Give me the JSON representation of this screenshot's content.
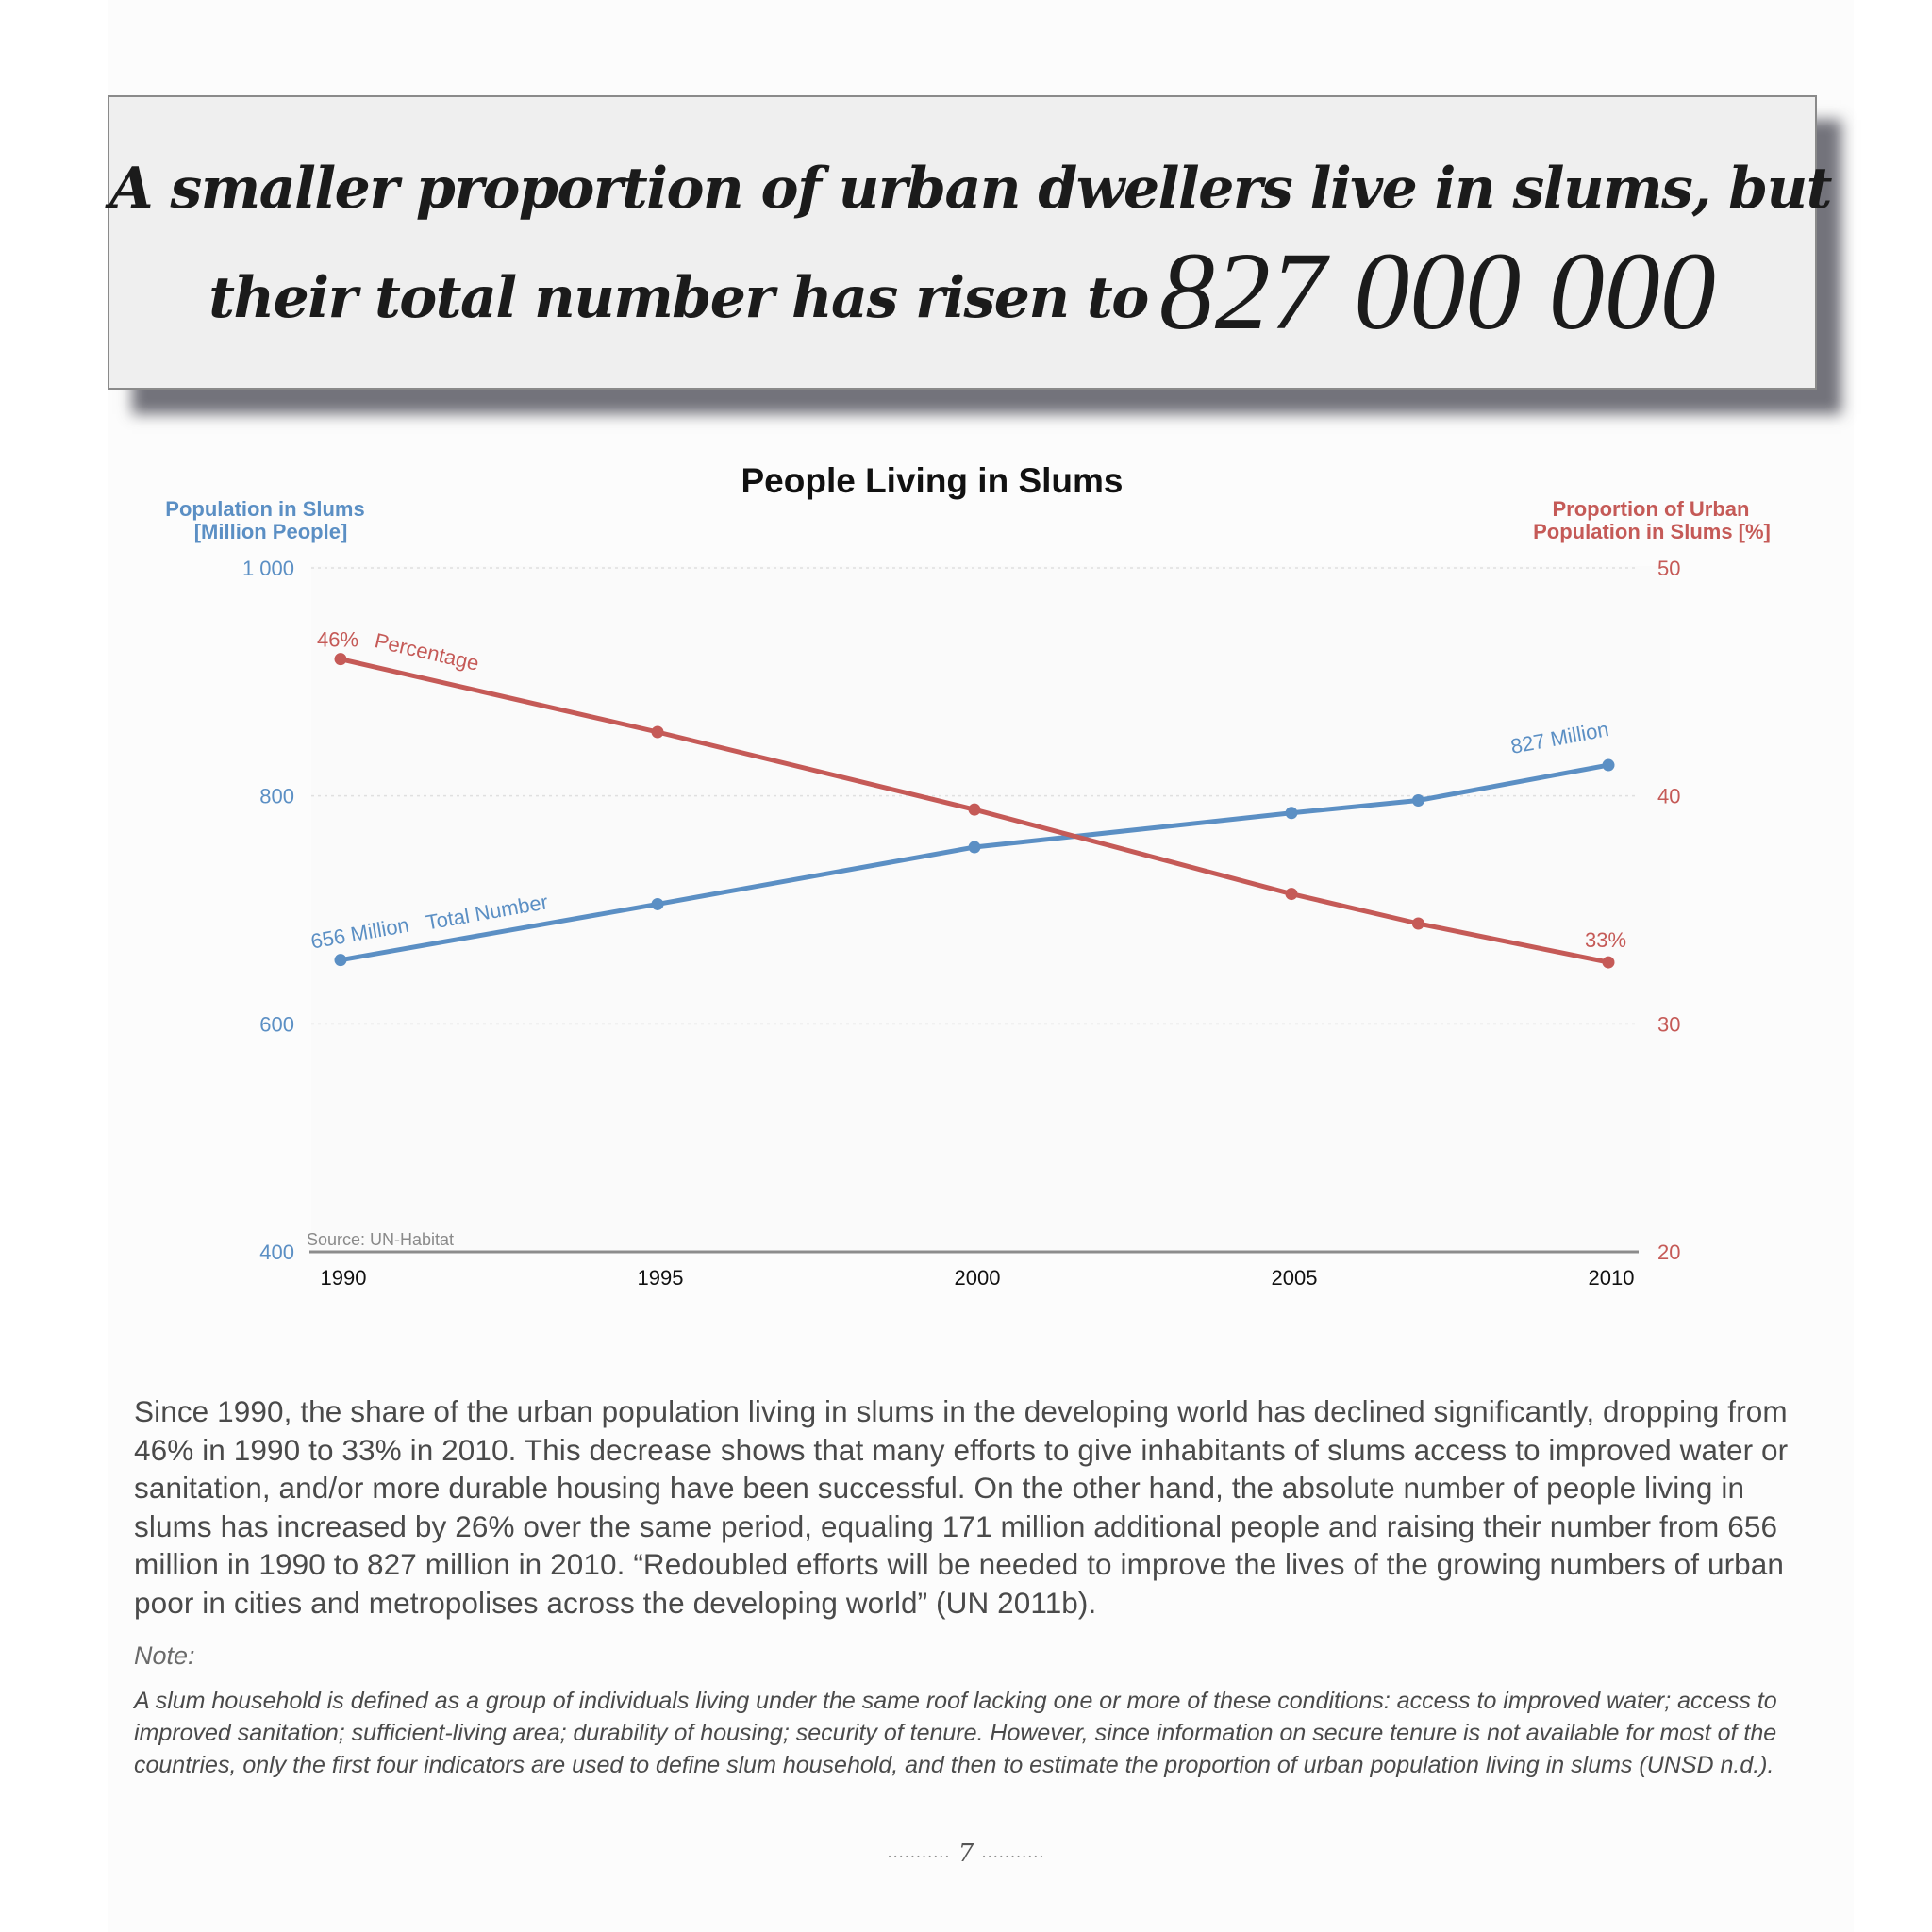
{
  "headline": {
    "line1": "A smaller proportion of urban dwellers live in slums, but",
    "line2": "their total number has risen to",
    "big_number": "827 000 000"
  },
  "chart_data": {
    "type": "line",
    "title": "People Living in Slums",
    "x": [
      1990,
      1995,
      2000,
      2005,
      2007,
      2010
    ],
    "x_ticks": [
      "1990",
      "1995",
      "2000",
      "2005",
      "2010"
    ],
    "y_left": {
      "label_line1": "Population in Slums",
      "label_line2": "[Million People]",
      "ticks": [
        "1 000",
        "800",
        "600",
        "400"
      ],
      "range": [
        400,
        1000
      ]
    },
    "y_right": {
      "label_line1": "Proportion of Urban",
      "label_line2": "Population in Slums [%]",
      "ticks": [
        "50",
        "40",
        "30",
        "20"
      ],
      "range": [
        20,
        50
      ]
    },
    "series": [
      {
        "name": "Total Number",
        "axis": "left",
        "color": "#5b8fc4",
        "values": [
          656,
          705,
          755,
          785,
          796,
          827
        ],
        "start_label": "656 Million",
        "end_label": "827 Million"
      },
      {
        "name": "Percentage",
        "axis": "right",
        "color": "#c55a57",
        "values": [
          46,
          42.8,
          39.4,
          35.7,
          34.4,
          32.7
        ],
        "start_label": "46%",
        "end_label": "33%"
      }
    ],
    "source": "Source: UN-Habitat",
    "grid": true
  },
  "body": {
    "paragraph": "Since 1990, the share of the urban population living in slums in the developing world has declined significantly, dropping from 46% in 1990 to 33% in 2010. This decrease shows that many efforts to give inhabitants of slums access to improved water or sanitation, and/or more durable housing have been successful. On the other hand, the absolute number of people living in slums has increased by 26% over the same period, equaling 171 million additional people and raising their number from 656 million in 1990 to 827 million in 2010. “Redoubled efforts will be needed to improve the lives of the growing numbers of urban poor in cities and metropolises across the developing world” (UN 2011b).",
    "note_label": "Note:",
    "note_text": "A slum household is defined as a group of individuals living under the same roof lacking one or more of these conditions: access to improved water; access to improved sanitation; sufficient-living area; durability of housing; security of tenure. However, since information on secure tenure is not available for most of the countries, only the first four indicators are used to define slum household, and then to estimate the proportion of urban population living in slums (UNSD n.d.)."
  },
  "footer": {
    "dots_left": "...........",
    "page_number": "7",
    "dots_right": "..........."
  }
}
